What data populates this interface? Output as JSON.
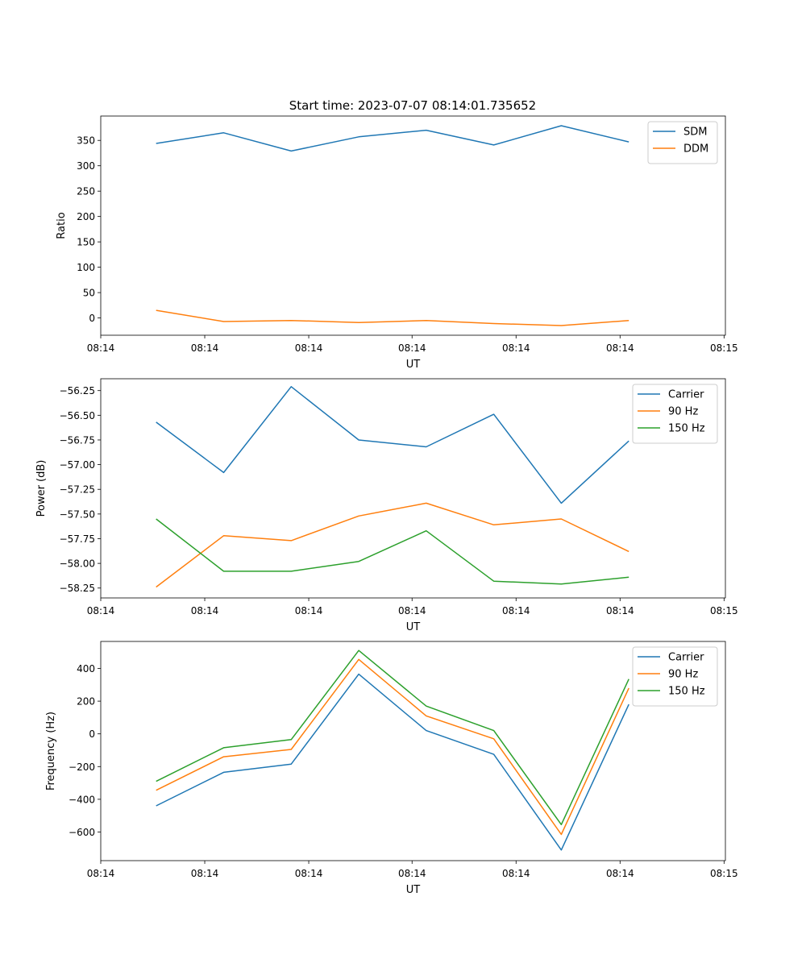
{
  "figure_title": "Start time: 2023-07-07 08:14:01.735652",
  "chart_data": [
    {
      "type": "line",
      "ylabel": "Ratio",
      "xlabel": "UT",
      "x": [
        1,
        2,
        3,
        4,
        5,
        6,
        7,
        8
      ],
      "xlim": [
        0.18,
        9.43
      ],
      "x_ticks": [
        0.18,
        1.72,
        3.26,
        4.79,
        6.33,
        7.87,
        9.41
      ],
      "x_tick_labels": [
        "08:14",
        "08:14",
        "08:14",
        "08:14",
        "08:14",
        "08:14",
        "08:15"
      ],
      "ylim": [
        -34,
        398
      ],
      "y_ticks": [
        0,
        50,
        100,
        150,
        200,
        250,
        300,
        350
      ],
      "y_tick_labels": [
        "0",
        "50",
        "100",
        "150",
        "200",
        "250",
        "300",
        "350"
      ],
      "legend_position": "top-right",
      "series": [
        {
          "name": "SDM",
          "color": "#1f77b4",
          "values": [
            344,
            365,
            329,
            357,
            370,
            341,
            379,
            347
          ]
        },
        {
          "name": "DDM",
          "color": "#ff7f0e",
          "values": [
            15,
            -7,
            -5,
            -9,
            -5,
            -11,
            -15,
            -5
          ]
        }
      ]
    },
    {
      "type": "line",
      "ylabel": "Power (dB)",
      "xlabel": "UT",
      "x": [
        1,
        2,
        3,
        4,
        5,
        6,
        7,
        8
      ],
      "xlim": [
        0.18,
        9.43
      ],
      "x_ticks": [
        0.18,
        1.72,
        3.26,
        4.79,
        6.33,
        7.87,
        9.41
      ],
      "x_tick_labels": [
        "08:14",
        "08:14",
        "08:14",
        "08:14",
        "08:14",
        "08:14",
        "08:15"
      ],
      "ylim": [
        -58.35,
        -56.13
      ],
      "y_ticks": [
        -58.25,
        -58.0,
        -57.75,
        -57.5,
        -57.25,
        -57.0,
        -56.75,
        -56.5,
        -56.25
      ],
      "y_tick_labels": [
        "−58.25",
        "−58.00",
        "−57.75",
        "−57.50",
        "−57.25",
        "−57.00",
        "−56.75",
        "−56.50",
        "−56.25"
      ],
      "legend_position": "top-right",
      "series": [
        {
          "name": "Carrier",
          "color": "#1f77b4",
          "values": [
            -56.57,
            -57.08,
            -56.21,
            -56.75,
            -56.82,
            -56.49,
            -57.39,
            -56.76
          ]
        },
        {
          "name": "90 Hz",
          "color": "#ff7f0e",
          "values": [
            -58.24,
            -57.72,
            -57.77,
            -57.52,
            -57.39,
            -57.61,
            -57.55,
            -57.88
          ]
        },
        {
          "name": "150 Hz",
          "color": "#2ca02c",
          "values": [
            -57.55,
            -58.08,
            -58.08,
            -57.98,
            -57.67,
            -58.18,
            -58.21,
            -58.14
          ]
        }
      ]
    },
    {
      "type": "line",
      "ylabel": "Frequency (Hz)",
      "xlabel": "UT",
      "x": [
        1,
        2,
        3,
        4,
        5,
        6,
        7,
        8
      ],
      "xlim": [
        0.18,
        9.43
      ],
      "x_ticks": [
        0.18,
        1.72,
        3.26,
        4.79,
        6.33,
        7.87,
        9.41
      ],
      "x_tick_labels": [
        "08:14",
        "08:14",
        "08:14",
        "08:14",
        "08:14",
        "08:14",
        "08:15"
      ],
      "ylim": [
        -775,
        565
      ],
      "y_ticks": [
        -600,
        -400,
        -200,
        0,
        200,
        400
      ],
      "y_tick_labels": [
        "−600",
        "−400",
        "−200",
        "0",
        "200",
        "400"
      ],
      "legend_position": "top-right",
      "series": [
        {
          "name": "Carrier",
          "color": "#1f77b4",
          "values": [
            -440,
            -235,
            -185,
            365,
            20,
            -125,
            -710,
            180
          ]
        },
        {
          "name": "90 Hz",
          "color": "#ff7f0e",
          "values": [
            -345,
            -140,
            -95,
            455,
            110,
            -30,
            -615,
            280
          ]
        },
        {
          "name": "150 Hz",
          "color": "#2ca02c",
          "values": [
            -290,
            -85,
            -35,
            510,
            170,
            20,
            -555,
            335
          ]
        }
      ]
    }
  ]
}
